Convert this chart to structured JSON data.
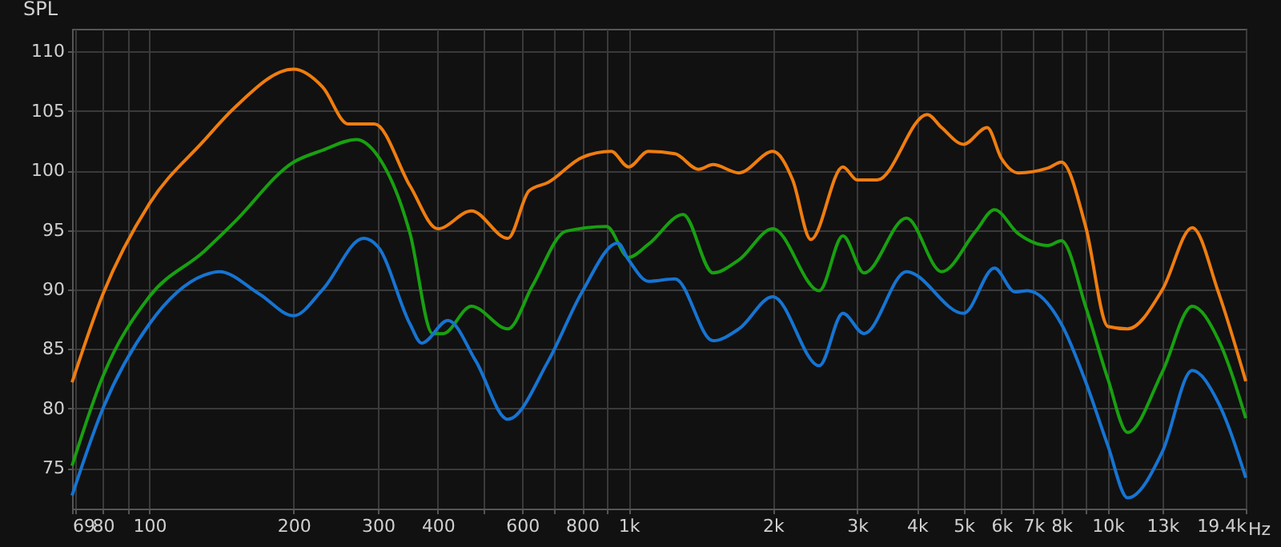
{
  "chart_data": {
    "type": "line",
    "ylabel": "SPL",
    "xlabel": "Hz",
    "log": "x",
    "grid": true,
    "marker": "none",
    "line_style": "solid",
    "xlim": [
      69,
      19400
    ],
    "ylim": [
      71.6,
      111.9
    ],
    "xticks": [
      69,
      {
        "value": 70,
        "label": null
      },
      80,
      {
        "value": 90,
        "label": null
      },
      100,
      200,
      300,
      400,
      {
        "value": 500,
        "label": null
      },
      600,
      {
        "value": 700,
        "label": null
      },
      800,
      {
        "value": 900,
        "label": null
      },
      {
        "value": 1000,
        "label": "1k"
      },
      {
        "value": 2000,
        "label": "2k"
      },
      {
        "value": 3000,
        "label": "3k"
      },
      {
        "value": 4000,
        "label": "4k"
      },
      {
        "value": 5000,
        "label": "5k"
      },
      {
        "value": 6000,
        "label": "6k"
      },
      {
        "value": 7000,
        "label": "7k"
      },
      {
        "value": 8000,
        "label": "8k"
      },
      {
        "value": 9000,
        "label": null
      },
      {
        "value": 10000,
        "label": "10k"
      },
      {
        "value": 13000,
        "label": "13k"
      },
      {
        "value": 19400,
        "label": "19.4k"
      }
    ],
    "yticks": [
      75,
      80,
      85,
      90,
      95,
      100,
      105,
      110
    ],
    "series": [
      {
        "color": "#ef7d0f",
        "x": [
          69,
          80,
          100,
          130,
          150,
          200,
          230,
          260,
          295,
          350,
          400,
          470,
          560,
          620,
          680,
          800,
          920,
          1000,
          1100,
          1250,
          1400,
          1500,
          1700,
          2000,
          2200,
          2400,
          2800,
          3000,
          3300,
          4200,
          4500,
          5000,
          5600,
          6000,
          6500,
          7500,
          8000,
          9000,
          10000,
          11000,
          13000,
          15000,
          17000,
          19400
        ],
        "values": [
          82.2,
          89.6,
          97.2,
          102.5,
          105.2,
          108.5,
          107.0,
          103.9,
          103.9,
          98.7,
          95.1,
          96.6,
          94.3,
          98.3,
          99.0,
          101.1,
          101.6,
          100.3,
          101.6,
          101.4,
          100.1,
          100.5,
          99.8,
          101.6,
          99.2,
          94.2,
          100.3,
          99.2,
          99.2,
          104.7,
          103.6,
          102.2,
          103.6,
          101.0,
          99.8,
          100.2,
          100.7,
          95.2,
          86.9,
          86.7,
          90.0,
          95.2,
          89.8,
          82.3
        ]
      },
      {
        "color": "#18a010",
        "x": [
          69,
          80,
          100,
          130,
          150,
          200,
          230,
          270,
          300,
          350,
          390,
          410,
          470,
          560,
          630,
          740,
          900,
          1000,
          1100,
          1300,
          1500,
          1700,
          2000,
          2500,
          2800,
          3100,
          3800,
          4500,
          5300,
          5800,
          6500,
          7500,
          8000,
          9000,
          10000,
          11000,
          13000,
          15000,
          17000,
          19400
        ],
        "values": [
          75.2,
          82.7,
          89.4,
          93.2,
          95.6,
          100.7,
          101.7,
          102.6,
          101.2,
          94.7,
          86.3,
          86.3,
          88.6,
          86.7,
          90.3,
          94.9,
          95.3,
          92.7,
          93.8,
          96.3,
          91.4,
          92.5,
          95.1,
          89.9,
          94.5,
          91.4,
          96.0,
          91.5,
          94.9,
          96.7,
          94.7,
          93.7,
          94.1,
          88.5,
          82.5,
          78.0,
          83.1,
          88.6,
          85.8,
          79.2
        ]
      },
      {
        "color": "#1674d2",
        "x": [
          69,
          80,
          100,
          130,
          140,
          170,
          200,
          230,
          280,
          300,
          350,
          370,
          420,
          480,
          560,
          680,
          800,
          950,
          1000,
          1100,
          1250,
          1500,
          1700,
          2000,
          2500,
          2800,
          3100,
          3800,
          5000,
          5800,
          6400,
          6800,
          8000,
          9000,
          10000,
          11000,
          13000,
          15000,
          17000,
          19400
        ],
        "values": [
          72.7,
          80.0,
          87.1,
          91.2,
          91.5,
          89.6,
          87.8,
          90.0,
          94.3,
          93.6,
          87.1,
          85.5,
          87.4,
          84.0,
          79.1,
          84.0,
          89.8,
          93.9,
          92.5,
          90.7,
          90.9,
          85.7,
          86.7,
          89.4,
          83.6,
          88.0,
          86.3,
          91.5,
          88.0,
          91.8,
          89.8,
          89.9,
          87.1,
          82.2,
          76.9,
          72.5,
          76.4,
          83.2,
          80.5,
          74.2
        ]
      }
    ]
  }
}
